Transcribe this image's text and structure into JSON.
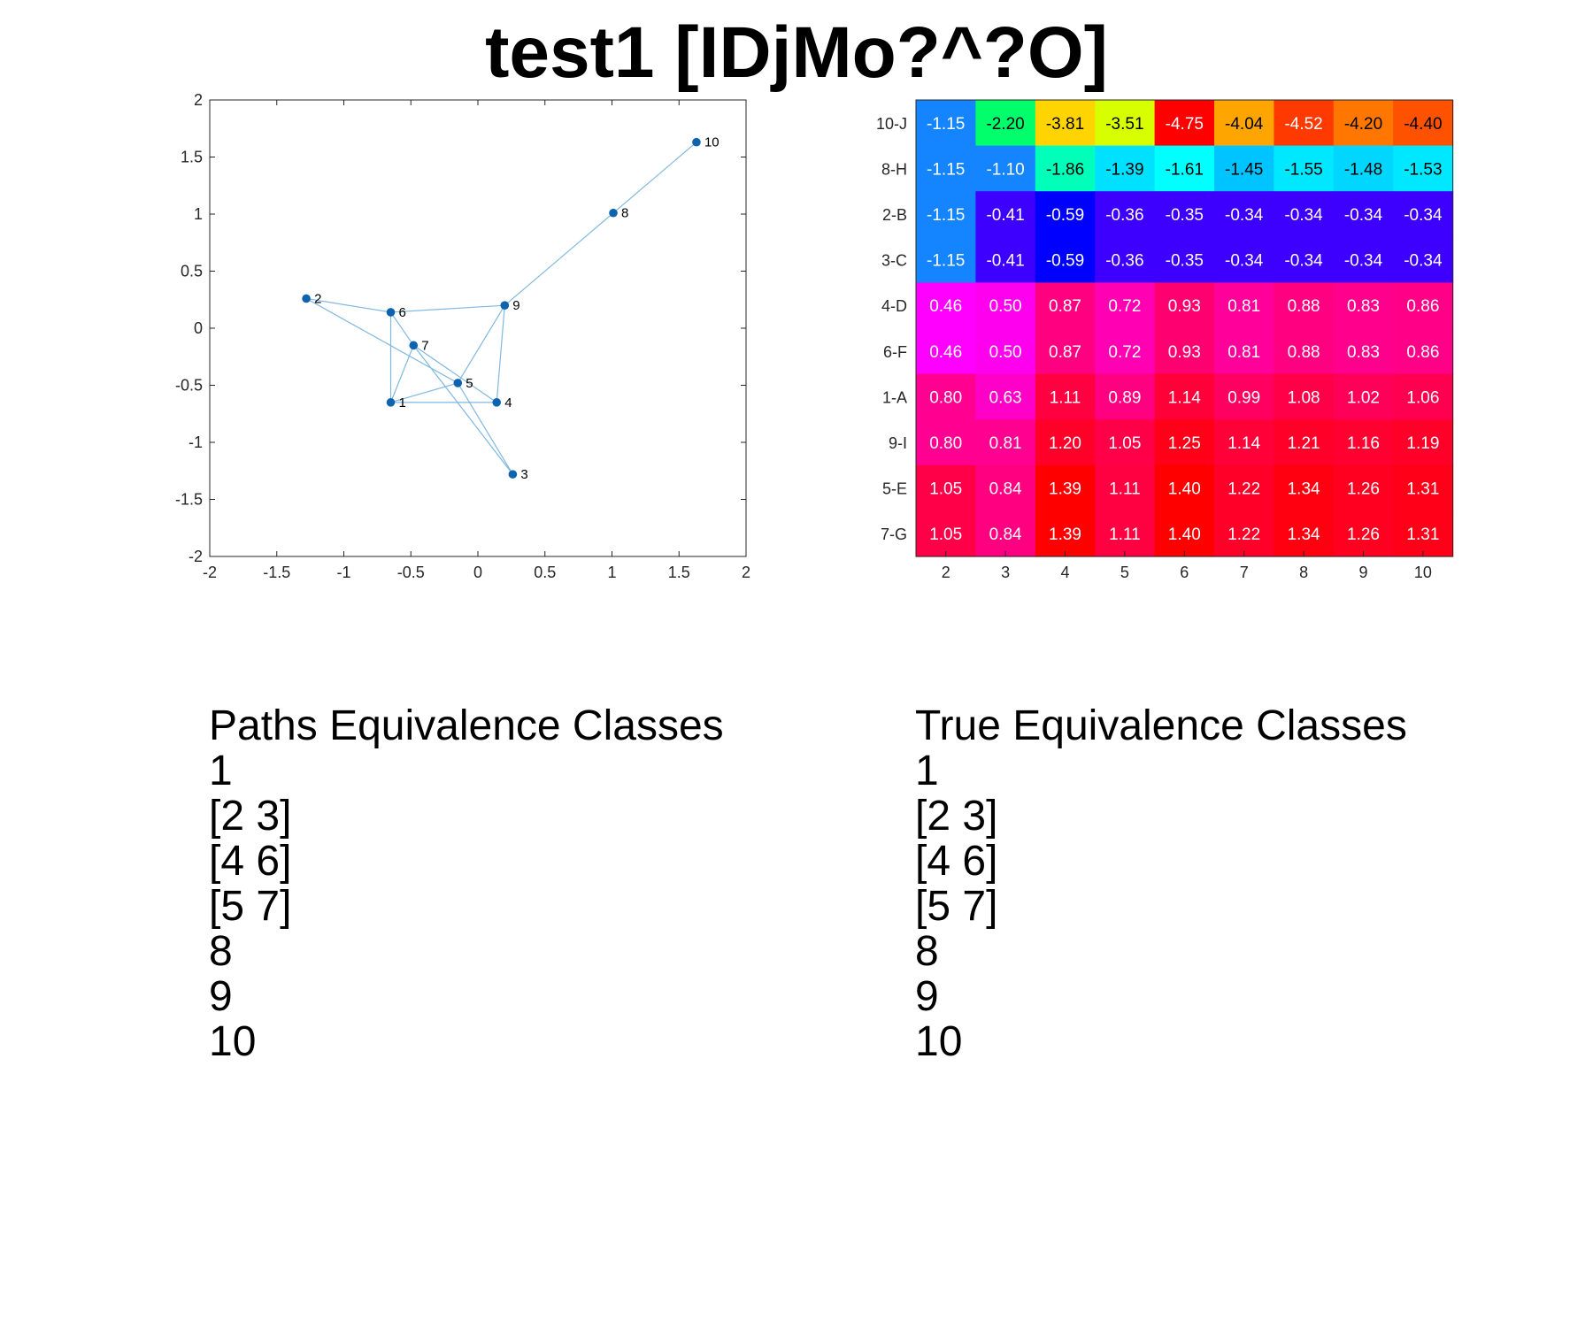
{
  "title": "test1 [IDjMo?^?O]",
  "colors": {
    "edge": "#7fb8e0",
    "node": "#0d63ae",
    "axis": "#262626"
  },
  "chart_data": [
    {
      "type": "scatter",
      "title": "",
      "xlabel": "",
      "ylabel": "",
      "xlim": [
        -2,
        2
      ],
      "ylim": [
        -2,
        2
      ],
      "xticks": [
        -2,
        -1.5,
        -1,
        -0.5,
        0,
        0.5,
        1,
        1.5,
        2
      ],
      "yticks": [
        -2,
        -1.5,
        -1,
        -0.5,
        0,
        0.5,
        1,
        1.5,
        2
      ],
      "xtick_labels": [
        "-2",
        "-1.5",
        "-1",
        "-0.5",
        "0",
        "0.5",
        "1",
        "1.5",
        "2"
      ],
      "ytick_labels": [
        "-2",
        "-1.5",
        "-1",
        "-0.5",
        "0",
        "0.5",
        "1",
        "1.5",
        "2"
      ],
      "grid": false,
      "points": [
        {
          "label": "1",
          "x": -0.65,
          "y": -0.65
        },
        {
          "label": "2",
          "x": -1.28,
          "y": 0.26
        },
        {
          "label": "3",
          "x": 0.26,
          "y": -1.28
        },
        {
          "label": "4",
          "x": 0.14,
          "y": -0.65
        },
        {
          "label": "5",
          "x": -0.15,
          "y": -0.48
        },
        {
          "label": "6",
          "x": -0.65,
          "y": 0.14
        },
        {
          "label": "7",
          "x": -0.48,
          "y": -0.15
        },
        {
          "label": "8",
          "x": 1.01,
          "y": 1.01
        },
        {
          "label": "9",
          "x": 0.2,
          "y": 0.2
        },
        {
          "label": "10",
          "x": 1.63,
          "y": 1.63
        }
      ],
      "edges": [
        [
          "10",
          "8"
        ],
        [
          "8",
          "9"
        ],
        [
          "9",
          "6"
        ],
        [
          "9",
          "5"
        ],
        [
          "9",
          "4"
        ],
        [
          "2",
          "6"
        ],
        [
          "2",
          "5"
        ],
        [
          "6",
          "7"
        ],
        [
          "6",
          "1"
        ],
        [
          "7",
          "1"
        ],
        [
          "7",
          "4"
        ],
        [
          "7",
          "3"
        ],
        [
          "5",
          "3"
        ],
        [
          "5",
          "1"
        ],
        [
          "1",
          "4"
        ]
      ]
    },
    {
      "type": "heatmap",
      "title": "",
      "row_labels": [
        "10-J",
        "8-H",
        "2-B",
        "3-C",
        "4-D",
        "6-F",
        "1-A",
        "9-I",
        "5-E",
        "7-G"
      ],
      "col_labels": [
        "2",
        "3",
        "4",
        "5",
        "6",
        "7",
        "8",
        "9",
        "10"
      ],
      "values": [
        [
          "-1.15",
          "-2.20",
          "-3.81",
          "-3.51",
          "-4.75",
          "-4.04",
          "-4.52",
          "-4.20",
          "-4.40"
        ],
        [
          "-1.15",
          "-1.10",
          "-1.86",
          "-1.39",
          "-1.61",
          "-1.45",
          "-1.55",
          "-1.48",
          "-1.53"
        ],
        [
          "-1.15",
          "-0.41",
          "-0.59",
          "-0.36",
          "-0.35",
          "-0.34",
          "-0.34",
          "-0.34",
          "-0.34"
        ],
        [
          "-1.15",
          "-0.41",
          "-0.59",
          "-0.36",
          "-0.35",
          "-0.34",
          "-0.34",
          "-0.34",
          "-0.34"
        ],
        [
          "0.46",
          "0.50",
          "0.87",
          "0.72",
          "0.93",
          "0.81",
          "0.88",
          "0.83",
          "0.86"
        ],
        [
          "0.46",
          "0.50",
          "0.87",
          "0.72",
          "0.93",
          "0.81",
          "0.88",
          "0.83",
          "0.86"
        ],
        [
          "0.80",
          "0.63",
          "1.11",
          "0.89",
          "1.14",
          "0.99",
          "1.08",
          "1.02",
          "1.06"
        ],
        [
          "0.80",
          "0.81",
          "1.20",
          "1.05",
          "1.25",
          "1.14",
          "1.21",
          "1.16",
          "1.19"
        ],
        [
          "1.05",
          "0.84",
          "1.39",
          "1.11",
          "1.40",
          "1.22",
          "1.34",
          "1.26",
          "1.31"
        ],
        [
          "1.05",
          "0.84",
          "1.39",
          "1.11",
          "1.40",
          "1.22",
          "1.34",
          "1.26",
          "1.31"
        ]
      ],
      "cell_colors": [
        [
          "#1485ff",
          "#00ff6a",
          "#ffd400",
          "#d8ff00",
          "#ff0000",
          "#ffa500",
          "#ff3a00",
          "#ff7700",
          "#ff5200"
        ],
        [
          "#1485ff",
          "#1485ff",
          "#00ffb8",
          "#00e1ff",
          "#00ffff",
          "#00c4ff",
          "#00e8ff",
          "#00d6ff",
          "#00e8ff"
        ],
        [
          "#1485ff",
          "#3d00ff",
          "#0000ff",
          "#3d00ff",
          "#3d00ff",
          "#3d00ff",
          "#3d00ff",
          "#3d00ff",
          "#3d00ff"
        ],
        [
          "#1485ff",
          "#3d00ff",
          "#0000ff",
          "#3d00ff",
          "#3d00ff",
          "#3d00ff",
          "#3d00ff",
          "#3d00ff",
          "#3d00ff"
        ],
        [
          "#ff00ff",
          "#ff00ee",
          "#ff0080",
          "#ff00b2",
          "#ff0070",
          "#ff009b",
          "#ff0080",
          "#ff008c",
          "#ff0086"
        ],
        [
          "#ff00ff",
          "#ff00ee",
          "#ff0080",
          "#ff00b2",
          "#ff0070",
          "#ff009b",
          "#ff0080",
          "#ff008c",
          "#ff0086"
        ],
        [
          "#ff0090",
          "#ff00c8",
          "#ff0040",
          "#ff0080",
          "#ff0038",
          "#ff0060",
          "#ff0048",
          "#ff0058",
          "#ff0050"
        ],
        [
          "#ff0090",
          "#ff0090",
          "#ff0028",
          "#ff0048",
          "#ff0018",
          "#ff0038",
          "#ff0028",
          "#ff0030",
          "#ff0028"
        ],
        [
          "#ff0048",
          "#ff0080",
          "#ff0000",
          "#ff0040",
          "#ff0000",
          "#ff0028",
          "#ff0010",
          "#ff0020",
          "#ff0018"
        ],
        [
          "#ff0048",
          "#ff0080",
          "#ff0000",
          "#ff0040",
          "#ff0000",
          "#ff0028",
          "#ff0010",
          "#ff0020",
          "#ff0018"
        ]
      ]
    }
  ],
  "paths_classes": {
    "heading": "Paths Equivalence Classes",
    "items": [
      "1",
      "[2 3]",
      "[4 6]",
      "[5 7]",
      "8",
      "9",
      "10"
    ]
  },
  "true_classes": {
    "heading": "True Equivalence Classes",
    "items": [
      "1",
      "[2 3]",
      "[4 6]",
      "[5 7]",
      "8",
      "9",
      "10"
    ]
  }
}
